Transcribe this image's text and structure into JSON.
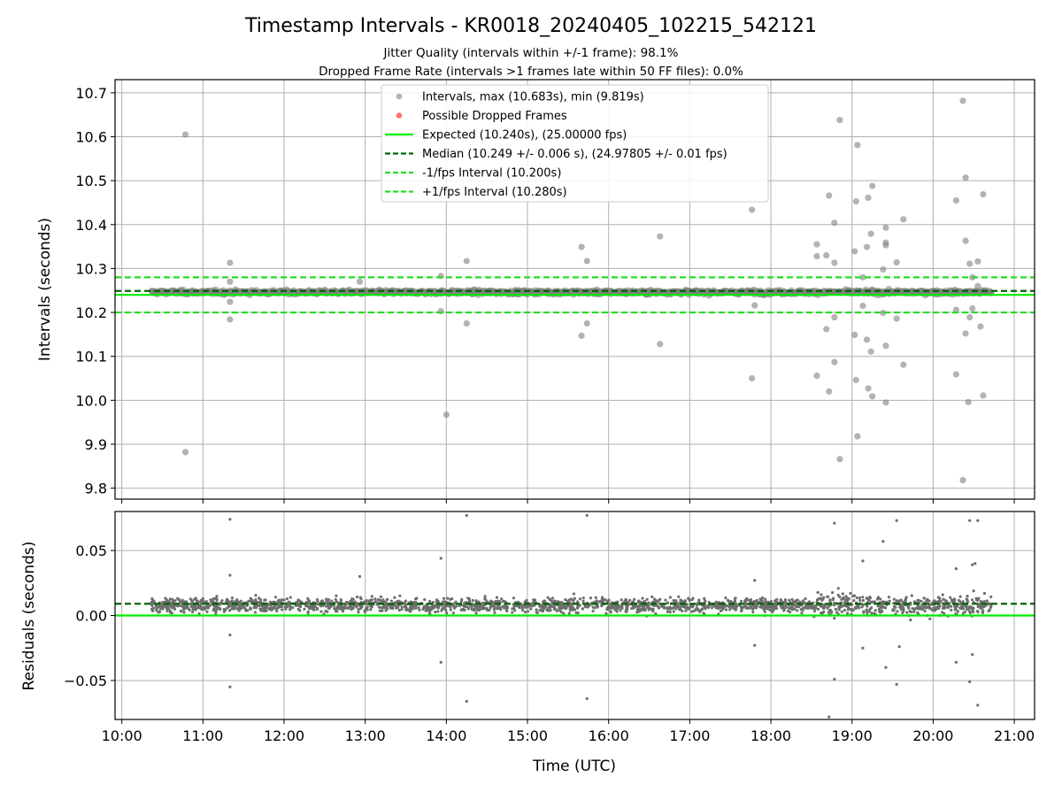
{
  "title": "Timestamp Intervals - KR0018_20240405_102215_542121",
  "subtitle_1": "Jitter Quality (intervals within +/-1 frame): 98.1%",
  "subtitle_2": "Dropped Frame Rate (intervals >1 frames late within 50 FF files): 0.0%",
  "colors": {
    "points": "#808080",
    "dropped": "#ff0000",
    "expected": "#00ee00",
    "median": "#006400",
    "interval": "#22dd22",
    "grid": "#b0b0b0"
  },
  "legend": {
    "placement": "top-center",
    "items": [
      "Intervals, max (10.683s), min (9.819s)",
      "Possible Dropped Frames",
      "Expected (10.240s), (25.00000 fps)",
      "Median (10.249 +/- 0.006 s), (24.97805 +/- 0.01 fps)",
      "-1/fps Interval (10.200s)",
      "+1/fps Interval (10.280s)"
    ]
  },
  "chart_data": [
    {
      "type": "scatter",
      "panel": "intervals",
      "ylabel": "Intervals (seconds)",
      "xlabel": "",
      "xlim": [
        "09:55",
        "21:15"
      ],
      "ylim": [
        9.775,
        10.73
      ],
      "grid": true,
      "y_ticks": [
        "9.8",
        "9.9",
        "10.0",
        "10.1",
        "10.2",
        "10.3",
        "10.4",
        "10.5",
        "10.6",
        "10.7"
      ],
      "reference_lines": [
        {
          "name": "Expected",
          "y": 10.24,
          "style": "solid"
        },
        {
          "name": "Median",
          "y": 10.249,
          "style": "dashed"
        },
        {
          "name": "-1/fps Interval",
          "y": 10.2,
          "style": "dashed"
        },
        {
          "name": "+1/fps Interval",
          "y": 10.28,
          "style": "dashed"
        }
      ],
      "band": {
        "x_start": "10:22",
        "x_end": "20:43",
        "center": 10.246,
        "spread": 0.008
      },
      "outliers": [
        {
          "t": "10:47",
          "y": 10.605
        },
        {
          "t": "10:47",
          "y": 9.882
        },
        {
          "t": "11:20",
          "y": 10.313
        },
        {
          "t": "11:20",
          "y": 10.184
        },
        {
          "t": "11:20",
          "y": 10.224
        },
        {
          "t": "11:20",
          "y": 10.27
        },
        {
          "t": "12:56",
          "y": 10.27
        },
        {
          "t": "13:56",
          "y": 10.283
        },
        {
          "t": "13:56",
          "y": 10.203
        },
        {
          "t": "14:00",
          "y": 9.967
        },
        {
          "t": "14:15",
          "y": 10.317
        },
        {
          "t": "14:15",
          "y": 10.175
        },
        {
          "t": "15:40",
          "y": 10.349
        },
        {
          "t": "15:40",
          "y": 10.147
        },
        {
          "t": "15:44",
          "y": 10.317
        },
        {
          "t": "15:44",
          "y": 10.175
        },
        {
          "t": "16:38",
          "y": 10.373
        },
        {
          "t": "16:38",
          "y": 10.128
        },
        {
          "t": "17:46",
          "y": 10.434
        },
        {
          "t": "17:46",
          "y": 10.05
        },
        {
          "t": "17:48",
          "y": 10.216
        },
        {
          "t": "18:34",
          "y": 10.355
        },
        {
          "t": "18:34",
          "y": 10.328
        },
        {
          "t": "18:34",
          "y": 10.056
        },
        {
          "t": "18:41",
          "y": 10.33
        },
        {
          "t": "18:41",
          "y": 10.162
        },
        {
          "t": "18:43",
          "y": 10.466
        },
        {
          "t": "18:43",
          "y": 10.02
        },
        {
          "t": "18:47",
          "y": 10.404
        },
        {
          "t": "18:47",
          "y": 10.313
        },
        {
          "t": "18:47",
          "y": 10.189
        },
        {
          "t": "18:47",
          "y": 10.087
        },
        {
          "t": "18:51",
          "y": 10.638
        },
        {
          "t": "18:51",
          "y": 9.866
        },
        {
          "t": "19:02",
          "y": 10.339
        },
        {
          "t": "19:02",
          "y": 10.149
        },
        {
          "t": "19:03",
          "y": 10.453
        },
        {
          "t": "19:03",
          "y": 10.046
        },
        {
          "t": "19:04",
          "y": 10.581
        },
        {
          "t": "19:04",
          "y": 9.918
        },
        {
          "t": "19:08",
          "y": 10.28
        },
        {
          "t": "19:08",
          "y": 10.215
        },
        {
          "t": "19:11",
          "y": 10.349
        },
        {
          "t": "19:11",
          "y": 10.138
        },
        {
          "t": "19:12",
          "y": 10.461
        },
        {
          "t": "19:12",
          "y": 10.027
        },
        {
          "t": "19:14",
          "y": 10.379
        },
        {
          "t": "19:14",
          "y": 10.111
        },
        {
          "t": "19:15",
          "y": 10.488
        },
        {
          "t": "19:15",
          "y": 10.009
        },
        {
          "t": "19:23",
          "y": 10.298
        },
        {
          "t": "19:23",
          "y": 10.199
        },
        {
          "t": "19:25",
          "y": 10.393
        },
        {
          "t": "19:25",
          "y": 10.359
        },
        {
          "t": "19:25",
          "y": 10.353
        },
        {
          "t": "19:25",
          "y": 10.124
        },
        {
          "t": "19:25",
          "y": 9.995
        },
        {
          "t": "19:33",
          "y": 10.314
        },
        {
          "t": "19:33",
          "y": 10.186
        },
        {
          "t": "19:38",
          "y": 10.412
        },
        {
          "t": "19:38",
          "y": 10.081
        },
        {
          "t": "20:17",
          "y": 10.455
        },
        {
          "t": "20:17",
          "y": 10.059
        },
        {
          "t": "20:17",
          "y": 10.206
        },
        {
          "t": "20:22",
          "y": 10.682
        },
        {
          "t": "20:22",
          "y": 9.818
        },
        {
          "t": "20:24",
          "y": 10.507
        },
        {
          "t": "20:24",
          "y": 10.363
        },
        {
          "t": "20:24",
          "y": 10.152
        },
        {
          "t": "20:26",
          "y": 9.996
        },
        {
          "t": "20:27",
          "y": 10.311
        },
        {
          "t": "20:27",
          "y": 10.189
        },
        {
          "t": "20:29",
          "y": 10.28
        },
        {
          "t": "20:29",
          "y": 10.209
        },
        {
          "t": "20:33",
          "y": 10.316
        },
        {
          "t": "20:33",
          "y": 10.26
        },
        {
          "t": "20:35",
          "y": 10.168
        },
        {
          "t": "20:37",
          "y": 10.469
        },
        {
          "t": "20:37",
          "y": 10.011
        }
      ]
    },
    {
      "type": "scatter",
      "panel": "residuals",
      "ylabel": "Residuals (seconds)",
      "xlabel": "Time (UTC)",
      "xlim": [
        "09:55",
        "21:15"
      ],
      "ylim": [
        -0.08,
        0.08
      ],
      "grid": true,
      "y_ticks": [
        "−0.05",
        "0.00",
        "0.05"
      ],
      "x_ticks": [
        "10:00",
        "11:00",
        "12:00",
        "13:00",
        "14:00",
        "15:00",
        "16:00",
        "17:00",
        "18:00",
        "19:00",
        "20:00",
        "21:00"
      ],
      "reference_lines": [
        {
          "name": "Expected",
          "y": 0.0,
          "style": "solid"
        },
        {
          "name": "Median",
          "y": 0.009,
          "style": "dashed"
        }
      ],
      "band": {
        "x_start": "10:22",
        "x_end": "20:43",
        "center": 0.008,
        "spread": 0.009
      },
      "outliers": [
        {
          "t": "11:20",
          "y": 0.074
        },
        {
          "t": "11:20",
          "y": -0.055
        },
        {
          "t": "11:20",
          "y": 0.031
        },
        {
          "t": "11:20",
          "y": -0.015
        },
        {
          "t": "12:56",
          "y": 0.03
        },
        {
          "t": "13:56",
          "y": 0.044
        },
        {
          "t": "13:56",
          "y": -0.036
        },
        {
          "t": "14:15",
          "y": 0.077
        },
        {
          "t": "14:15",
          "y": -0.066
        },
        {
          "t": "15:44",
          "y": 0.077
        },
        {
          "t": "15:44",
          "y": -0.064
        },
        {
          "t": "17:48",
          "y": 0.027
        },
        {
          "t": "17:48",
          "y": -0.023
        },
        {
          "t": "18:43",
          "y": -0.078
        },
        {
          "t": "18:47",
          "y": 0.071
        },
        {
          "t": "18:47",
          "y": -0.049
        },
        {
          "t": "19:08",
          "y": 0.042
        },
        {
          "t": "19:08",
          "y": -0.025
        },
        {
          "t": "19:23",
          "y": 0.057
        },
        {
          "t": "19:25",
          "y": -0.04
        },
        {
          "t": "19:33",
          "y": 0.073
        },
        {
          "t": "19:33",
          "y": -0.053
        },
        {
          "t": "19:35",
          "y": -0.024
        },
        {
          "t": "20:17",
          "y": 0.036
        },
        {
          "t": "20:17",
          "y": -0.036
        },
        {
          "t": "20:27",
          "y": 0.073
        },
        {
          "t": "20:27",
          "y": -0.051
        },
        {
          "t": "20:29",
          "y": 0.039
        },
        {
          "t": "20:29",
          "y": -0.03
        },
        {
          "t": "20:33",
          "y": 0.073
        },
        {
          "t": "20:33",
          "y": -0.069
        },
        {
          "t": "20:31",
          "y": 0.04
        }
      ]
    }
  ]
}
